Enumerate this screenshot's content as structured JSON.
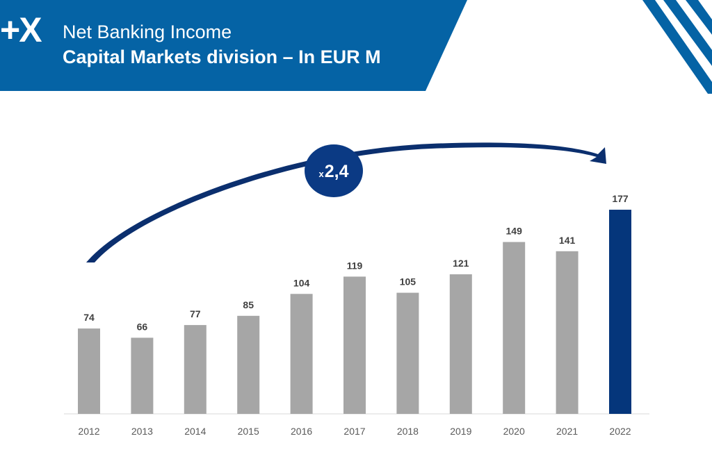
{
  "header": {
    "logo": "+X",
    "title": "Net Banking Income",
    "subtitle": "Capital Markets division – In EUR M"
  },
  "colors": {
    "banner": "#0563a5",
    "bar": "#a6a6a6",
    "highlight_bar": "#05367b",
    "arrow": "#0b2f6e",
    "badge": "#0b3a84"
  },
  "annotation": {
    "prefix": "x",
    "value": "2,4"
  },
  "chart_data": {
    "type": "bar",
    "categories": [
      "2012",
      "2013",
      "2014",
      "2015",
      "2016",
      "2017",
      "2018",
      "2019",
      "2020",
      "2021",
      "2022"
    ],
    "values": [
      74,
      66,
      77,
      85,
      104,
      119,
      105,
      121,
      149,
      141,
      177
    ],
    "highlight_index": 10,
    "title": "Net Banking Income",
    "subtitle": "Capital Markets division – In EUR M",
    "ylim": [
      0,
      180
    ],
    "grid": false,
    "y_axis_visible": false,
    "data_labels": true
  }
}
